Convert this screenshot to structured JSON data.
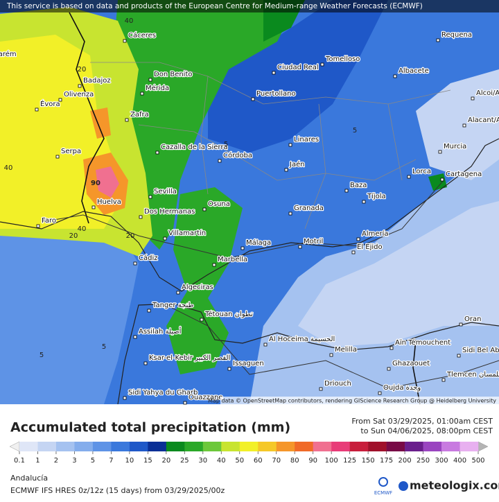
{
  "banner": "This service is based on data and products of the European Centre for Medium-range Weather Forecasts (ECMWF)",
  "attribution": "Map data © OpenStreetMap contributors, rendering GIScience Research Group @ Heidelberg University",
  "map": {
    "cities": [
      "Cáceres",
      "Badajoz",
      "Olivenza",
      "Mérida",
      "Don Benito",
      "Ciudad Real",
      "Tomelloso",
      "Requena",
      "Albacete",
      "Puertollano",
      "Évora",
      "Zafra",
      "Cazalla de la Sierra",
      "Córdoba",
      "Linares",
      "Jaén",
      "Murcia",
      "Alacant/Alicante",
      "Alcoi/Alcoy",
      "Lorca",
      "Cartagena",
      "Baza",
      "Tíjola",
      "Sevilla",
      "Dos Hermanas",
      "Huelva",
      "Faro",
      "Osuna",
      "Granada",
      "Villamartín",
      "Málaga",
      "Motril",
      "Almería",
      "El Ejido",
      "Cádiz",
      "Marbella",
      "Algeciras",
      "Tanger طنجة",
      "Tétouan تطوان",
      "Assilah أصيلة",
      "Al Hoceima الحسيمة",
      "Melilla",
      "Ksar-el-Kebir القصر الكبير",
      "Issaguen",
      "Driouch",
      "Oujda وجدة",
      "Aïn Témouchent",
      "Oran",
      "Sidi Bel Abbès",
      "Ghazaouet",
      "Tlemcen تلمسان",
      "Sidi Yahya du Gharb",
      "Ouazzane",
      "Santarém",
      "Serpa"
    ],
    "contour_labels": [
      40,
      20,
      40,
      90,
      40,
      20,
      20,
      5,
      5,
      5,
      5
    ]
  },
  "legend": {
    "title": "Accumulated total precipitation (mm)",
    "from": "From Sat 03/29/2025, 01:00am CEST",
    "to": "to Sun 04/06/2025, 08:00pm CEST",
    "ticks": [
      0.1,
      1,
      2,
      3,
      5,
      7,
      10,
      15,
      20,
      25,
      30,
      40,
      50,
      60,
      70,
      80,
      90,
      100,
      125,
      150,
      175,
      200,
      250,
      300,
      400,
      500
    ],
    "colors": [
      "#dfe6f7",
      "#c5d5f3",
      "#a5c2f0",
      "#84adec",
      "#5e93e6",
      "#3a78dc",
      "#1f58c8",
      "#0a2f96",
      "#0a8a1e",
      "#2aa828",
      "#6cc83a",
      "#c8e430",
      "#f2f028",
      "#f5c828",
      "#f5962a",
      "#f06a28",
      "#f07090",
      "#e83c78",
      "#c81e3c",
      "#a0102a",
      "#780a46",
      "#6a1e8c",
      "#9a44c0",
      "#c87ae0",
      "#e8b0f0"
    ],
    "under_color": "#f0f0f0",
    "over_color": "#b4b4b4"
  },
  "footer": {
    "region": "Andalucía",
    "model": "ECMWF IFS HRES 0z/12z (15 days) from  03/29/2025/00z",
    "ecmwf": "ECMWF",
    "brand": "meteologix.com"
  }
}
